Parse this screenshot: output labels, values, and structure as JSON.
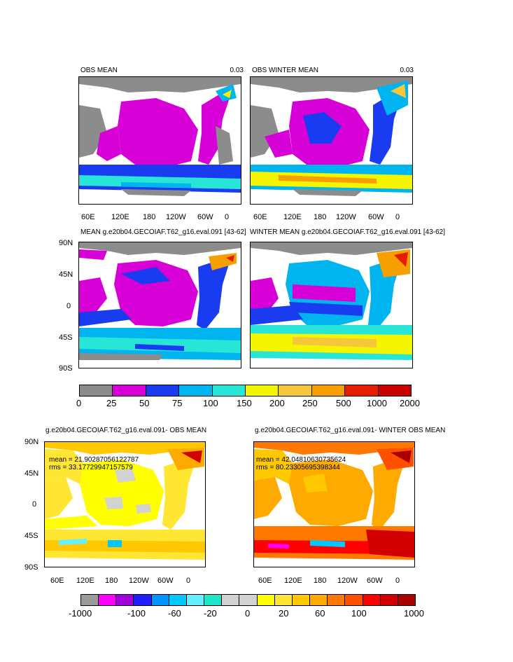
{
  "panels": {
    "obs_mean": {
      "title": "OBS MEAN",
      "value": "0.03"
    },
    "obs_winter_mean": {
      "title": "OBS WINTER MEAN",
      "value": "0.03"
    },
    "model_mean": {
      "title": "MEAN g.e20b04.GECOIAF.T62_g16.eval.091 [43-62]"
    },
    "model_winter_mean": {
      "title": "WINTER MEAN g.e20b04.GECOIAF.T62_g16.eval.091 [43-62]"
    },
    "diff_mean": {
      "title": "g.e20b04.GECOIAF.T62_g16.eval.091- OBS MEAN",
      "mean_text": "mean = 21.90287056122787",
      "rms_text": "rms = 33.17729947157579"
    },
    "diff_winter_mean": {
      "title": "g.e20b04.GECOIAF.T62_g16.eval.091- WINTER OBS MEAN",
      "mean_text": "mean = 42.04810630735624",
      "rms_text": "rms = 80.23305695398344"
    }
  },
  "lon_ticks": [
    "60E",
    "120E",
    "180",
    "120W",
    "60W",
    "0"
  ],
  "lat_ticks": [
    "90N",
    "45N",
    "0",
    "45S",
    "90S"
  ],
  "colorbar_top": {
    "labels": [
      "0",
      "25",
      "50",
      "75",
      "100",
      "150",
      "200",
      "250",
      "500",
      "1000",
      "2000"
    ],
    "colors": [
      "#8c8c8c",
      "#d700d7",
      "#1a3cf0",
      "#00b4f0",
      "#28e6d7",
      "#f5f500",
      "#f5c83c",
      "#f5a000",
      "#e61e00",
      "#c80000"
    ]
  },
  "colorbar_bottom": {
    "labels": [
      "-1000",
      "-100",
      "-60",
      "-20",
      "0",
      "20",
      "60",
      "100",
      "1000"
    ],
    "colors": [
      "#9b9b9b",
      "#ff00ff",
      "#a000dc",
      "#1e1eff",
      "#0096ff",
      "#00c8ff",
      "#64f0ff",
      "#1ee6c8",
      "#d2d2d2",
      "#d2d2d2",
      "#ffff00",
      "#ffe632",
      "#ffc800",
      "#ffaa00",
      "#ff7800",
      "#ff5000",
      "#ff0000",
      "#d20000",
      "#aa0000"
    ]
  }
}
